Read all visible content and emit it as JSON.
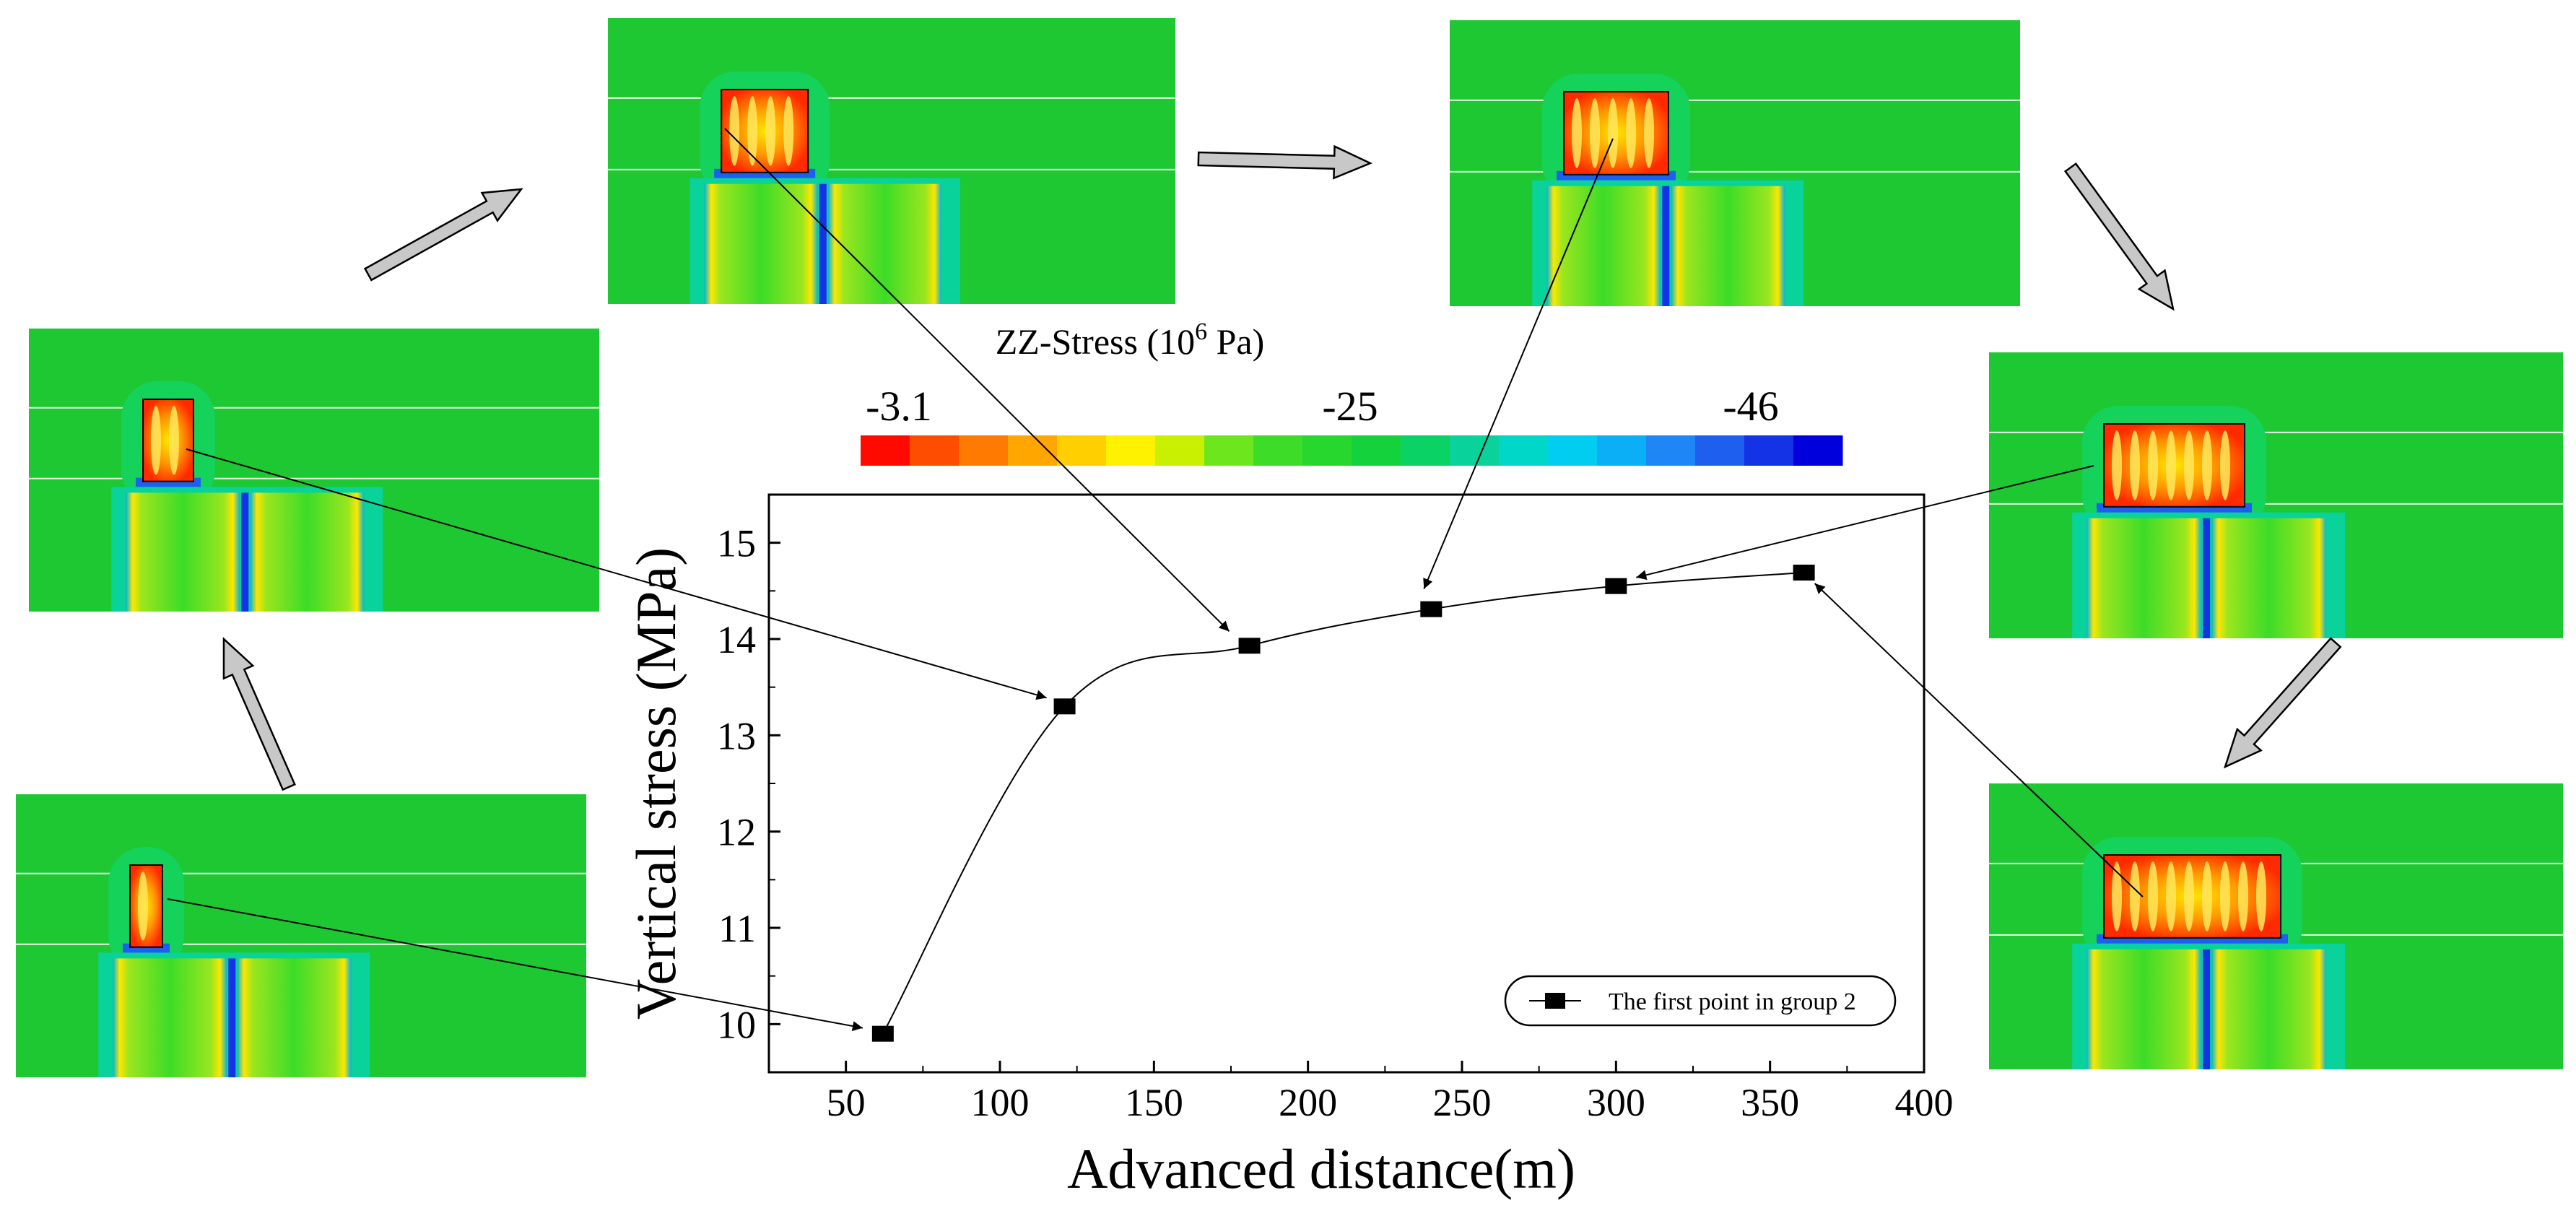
{
  "chart_data": {
    "type": "line",
    "xlabel": "Advanced distance(m)",
    "ylabel": "Vertical stress (MPa)",
    "xlim": [
      25,
      400
    ],
    "ylim": [
      9.5,
      15.5
    ],
    "x_ticks": [
      50,
      100,
      150,
      200,
      250,
      300,
      350,
      400
    ],
    "y_ticks": [
      10,
      11,
      12,
      13,
      14,
      15
    ],
    "grid": false,
    "legend_position": "bottom-right",
    "series": [
      {
        "name": "The first point in group 2",
        "marker": "square",
        "line": "smooth",
        "x": [
          62,
          121,
          181,
          240,
          300,
          361
        ],
        "y": [
          9.9,
          13.3,
          13.93,
          14.31,
          14.55,
          14.69
        ]
      }
    ]
  },
  "colorbar": {
    "title": "ZZ-Stress (10",
    "title_exp": "6",
    "title_tail": " Pa)",
    "min_label": "-3.1",
    "mid_label": "-25",
    "max_label": "-46",
    "colors": [
      "#ff0a00",
      "#ff4d00",
      "#ff7a00",
      "#ffa600",
      "#ffcf00",
      "#fff200",
      "#c8f000",
      "#6ee61e",
      "#3cdc28",
      "#28d72d",
      "#14d23c",
      "#0ad264",
      "#0ad29b",
      "#00d7c8",
      "#00cdf0",
      "#0aaff5",
      "#1e87f5",
      "#1e5ff0",
      "#1432e6",
      "#0000dc"
    ]
  },
  "insets": {
    "arrow_color": "#c8c8c8",
    "background_color": "#1ec832",
    "stages": [
      {
        "id": 1,
        "zone_widths": 1
      },
      {
        "id": 2,
        "zone_widths": 2
      },
      {
        "id": 3,
        "zone_widths": 4
      },
      {
        "id": 4,
        "zone_widths": 5
      },
      {
        "id": 5,
        "zone_widths": 7
      },
      {
        "id": 6,
        "zone_widths": 9
      }
    ]
  }
}
